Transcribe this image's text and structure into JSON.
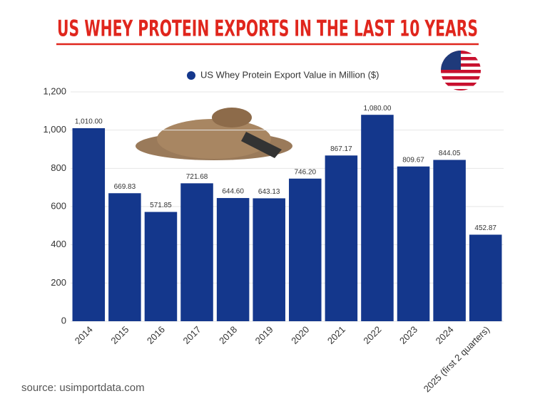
{
  "chart_data": {
    "type": "bar",
    "title": "US WHEY PROTEIN EXPORTS IN THE LAST 10 YEARS",
    "legend": "US Whey Protein Export Value in Million ($)",
    "source": "source: usimportdata.com",
    "categories": [
      "2014",
      "2015",
      "2016",
      "2017",
      "2018",
      "2019",
      "2020",
      "2021",
      "2022",
      "2023",
      "2024",
      "2025 (first 2 quarters)"
    ],
    "values": [
      1010.0,
      669.83,
      571.85,
      721.68,
      644.6,
      643.13,
      746.2,
      867.17,
      1080.0,
      809.67,
      844.05,
      452.87
    ],
    "value_labels": [
      "1,010.00",
      "669.83",
      "571.85",
      "721.68",
      "644.60",
      "643.13",
      "746.20",
      "867.17",
      "1,080.00",
      "809.67",
      "844.05",
      "452.87"
    ],
    "color": "#14378c",
    "ylim": [
      0,
      1200
    ],
    "yticks": [
      0,
      200,
      400,
      600,
      800,
      {
        "value": 1000,
        "label": "1,000"
      },
      {
        "value": 1200,
        "label": "1,200"
      }
    ],
    "grid": true
  }
}
